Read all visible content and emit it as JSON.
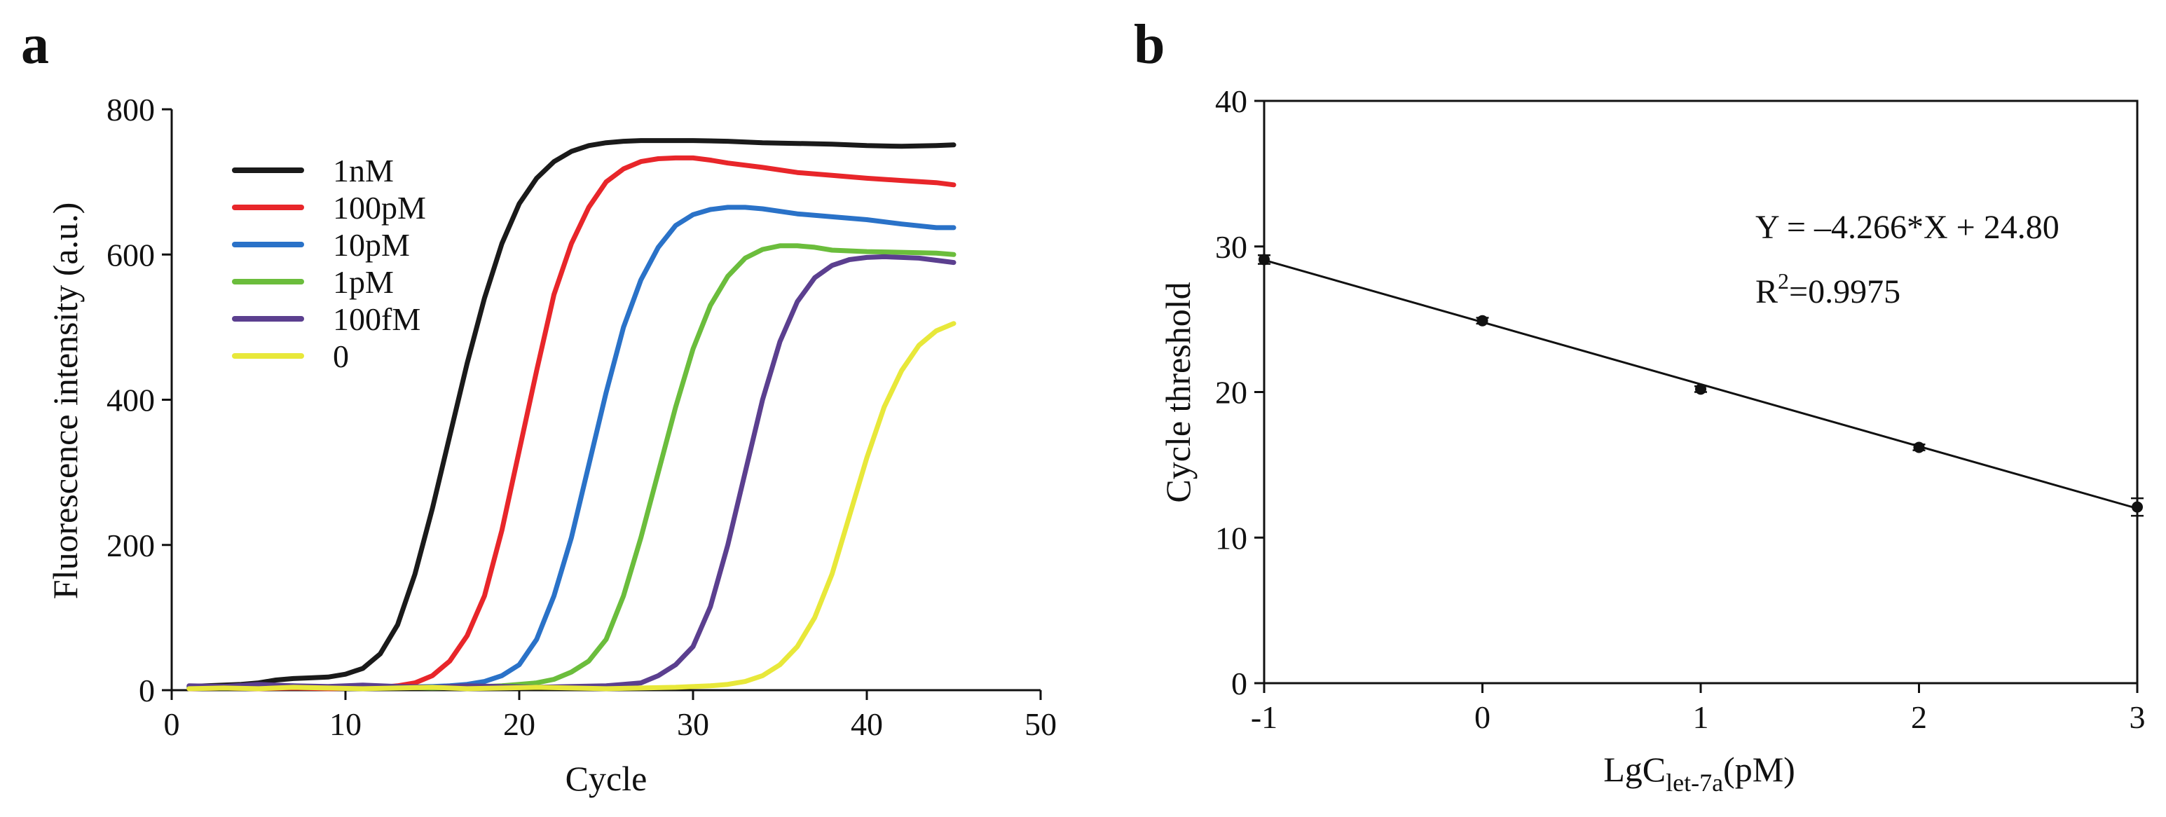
{
  "panels": {
    "a": {
      "label": "a"
    },
    "b": {
      "label": "b"
    }
  },
  "chart_data": [
    {
      "panel": "a",
      "type": "line",
      "title": "",
      "xlabel": "Cycle",
      "ylabel": "Fluorescence intensity (a.u.)",
      "xlim": [
        0,
        50
      ],
      "ylim": [
        0,
        800
      ],
      "xticks": [
        0,
        10,
        20,
        30,
        40,
        50
      ],
      "yticks": [
        0,
        200,
        400,
        600,
        800
      ],
      "legend_position": "top-left",
      "series": [
        {
          "name": "1nM",
          "color": "#1a1a1a",
          "x": [
            1,
            2,
            3,
            4,
            5,
            6,
            7,
            8,
            9,
            10,
            11,
            12,
            13,
            14,
            15,
            16,
            17,
            18,
            19,
            20,
            21,
            22,
            23,
            24,
            25,
            26,
            27,
            28,
            30,
            32,
            34,
            36,
            38,
            40,
            42,
            44,
            45
          ],
          "y": [
            5,
            6,
            7,
            8,
            10,
            14,
            16,
            17,
            18,
            22,
            30,
            50,
            90,
            160,
            250,
            350,
            450,
            540,
            615,
            670,
            705,
            728,
            742,
            750,
            754,
            756,
            757,
            757,
            757,
            756,
            754,
            753,
            752,
            750,
            749,
            750,
            751
          ]
        },
        {
          "name": "100pM",
          "color": "#e8262a",
          "x": [
            1,
            3,
            5,
            7,
            9,
            11,
            12,
            13,
            14,
            15,
            16,
            17,
            18,
            19,
            20,
            21,
            22,
            23,
            24,
            25,
            26,
            27,
            28,
            29,
            30,
            31,
            32,
            34,
            36,
            38,
            40,
            42,
            44,
            45
          ],
          "y": [
            2,
            3,
            2,
            3,
            2,
            3,
            4,
            6,
            10,
            20,
            40,
            75,
            130,
            220,
            330,
            440,
            545,
            615,
            665,
            700,
            718,
            728,
            732,
            733,
            733,
            730,
            726,
            720,
            713,
            709,
            705,
            702,
            699,
            696
          ]
        },
        {
          "name": "10pM",
          "color": "#2a72c8",
          "x": [
            1,
            3,
            5,
            7,
            9,
            11,
            13,
            15,
            16,
            17,
            18,
            19,
            20,
            21,
            22,
            23,
            24,
            25,
            26,
            27,
            28,
            29,
            30,
            31,
            32,
            33,
            34,
            36,
            38,
            40,
            42,
            44,
            45
          ],
          "y": [
            3,
            5,
            3,
            6,
            4,
            5,
            4,
            5,
            6,
            8,
            12,
            20,
            35,
            70,
            130,
            210,
            310,
            410,
            500,
            565,
            610,
            640,
            655,
            662,
            665,
            665,
            663,
            656,
            652,
            648,
            642,
            637,
            637
          ]
        },
        {
          "name": "1pM",
          "color": "#6bbd3c",
          "x": [
            1,
            3,
            5,
            7,
            9,
            11,
            13,
            15,
            17,
            19,
            20,
            21,
            22,
            23,
            24,
            25,
            26,
            27,
            28,
            29,
            30,
            31,
            32,
            33,
            34,
            35,
            36,
            37,
            38,
            40,
            42,
            44,
            45
          ],
          "y": [
            4,
            3,
            6,
            4,
            3,
            5,
            4,
            3,
            4,
            6,
            8,
            10,
            15,
            25,
            40,
            70,
            130,
            210,
            300,
            390,
            470,
            530,
            570,
            595,
            607,
            612,
            612,
            610,
            606,
            604,
            603,
            602,
            600
          ]
        },
        {
          "name": "100fM",
          "color": "#5b3f8f",
          "x": [
            1,
            3,
            5,
            7,
            9,
            11,
            13,
            15,
            17,
            19,
            21,
            23,
            25,
            26,
            27,
            28,
            29,
            30,
            31,
            32,
            33,
            34,
            35,
            36,
            37,
            38,
            39,
            40,
            41,
            42,
            43,
            44,
            45
          ],
          "y": [
            6,
            5,
            8,
            6,
            5,
            7,
            5,
            4,
            6,
            5,
            4,
            5,
            6,
            8,
            10,
            20,
            35,
            60,
            115,
            200,
            300,
            400,
            480,
            535,
            568,
            585,
            593,
            596,
            597,
            596,
            595,
            592,
            589
          ]
        },
        {
          "name": "0",
          "color": "#e8e83a",
          "x": [
            1,
            3,
            5,
            7,
            9,
            11,
            13,
            15,
            17,
            19,
            21,
            23,
            25,
            27,
            29,
            31,
            32,
            33,
            34,
            35,
            36,
            37,
            38,
            39,
            40,
            41,
            42,
            43,
            44,
            45
          ],
          "y": [
            2,
            3,
            2,
            4,
            3,
            2,
            3,
            4,
            2,
            3,
            4,
            3,
            2,
            3,
            4,
            6,
            8,
            12,
            20,
            35,
            60,
            100,
            160,
            240,
            320,
            390,
            440,
            475,
            495,
            505
          ]
        }
      ]
    },
    {
      "panel": "b",
      "type": "scatter",
      "title": "",
      "xlabel": "LgC",
      "xlabel_subscript": "let-7a",
      "xlabel_suffix": "(pM)",
      "ylabel": "Cycle threshold",
      "xlim": [
        -1,
        3
      ],
      "ylim": [
        0,
        40
      ],
      "xticks": [
        -1,
        0,
        1,
        2,
        3
      ],
      "yticks": [
        0,
        10,
        20,
        30,
        40
      ],
      "points": {
        "x": [
          -1,
          0,
          1,
          2,
          3
        ],
        "y": [
          29.1,
          24.9,
          20.2,
          16.2,
          12.1
        ]
      },
      "error_bars": [
        0.3,
        0.2,
        0.2,
        0.2,
        0.6
      ],
      "fit": {
        "slope": -4.266,
        "intercept": 24.8
      },
      "annotation": {
        "equation": "Y = –4.266*X + 24.80",
        "r2_prefix": "R",
        "r2_exp": "2",
        "r2_value": "=0.9975"
      }
    }
  ]
}
